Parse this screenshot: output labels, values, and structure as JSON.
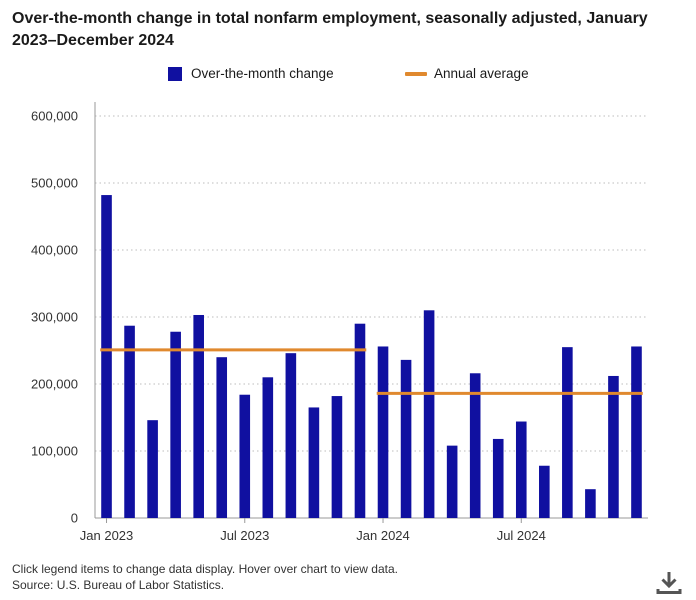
{
  "chart_data": {
    "type": "bar",
    "title": "Over-the-month change in total nonfarm employment, seasonally adjusted, January 2023–December 2024",
    "xlabel": "",
    "ylabel": "",
    "ylim": [
      0,
      600000
    ],
    "yticks": [
      "0",
      "100,000",
      "200,000",
      "300,000",
      "400,000",
      "500,000",
      "600,000"
    ],
    "ytick_values": [
      0,
      100000,
      200000,
      300000,
      400000,
      500000,
      600000
    ],
    "grid": true,
    "legend_position": "top-center",
    "categories": [
      "Jan 2023",
      "Feb 2023",
      "Mar 2023",
      "Apr 2023",
      "May 2023",
      "Jun 2023",
      "Jul 2023",
      "Aug 2023",
      "Sep 2023",
      "Oct 2023",
      "Nov 2023",
      "Dec 2023",
      "Jan 2024",
      "Feb 2024",
      "Mar 2024",
      "Apr 2024",
      "May 2024",
      "Jun 2024",
      "Jul 2024",
      "Aug 2024",
      "Sep 2024",
      "Oct 2024",
      "Nov 2024",
      "Dec 2024"
    ],
    "x_tick_labels": [
      {
        "index": 0,
        "label": "Jan 2023"
      },
      {
        "index": 6,
        "label": "Jul 2023"
      },
      {
        "index": 12,
        "label": "Jan 2024"
      },
      {
        "index": 18,
        "label": "Jul 2024"
      }
    ],
    "series": [
      {
        "name": "Over-the-month change",
        "type": "bar",
        "color": "#1010a0",
        "values": [
          482000,
          287000,
          146000,
          278000,
          303000,
          240000,
          184000,
          210000,
          246000,
          165000,
          182000,
          290000,
          256000,
          236000,
          310000,
          108000,
          216000,
          118000,
          144000,
          78000,
          255000,
          43000,
          212000,
          256000
        ]
      },
      {
        "name": "Annual average",
        "type": "line",
        "color": "#e0892e",
        "segments": [
          {
            "from": "Jan 2023",
            "to": "Dec 2023",
            "value": 251000
          },
          {
            "from": "Jan 2024",
            "to": "Dec 2024",
            "value": 186000
          }
        ]
      }
    ]
  },
  "legend": {
    "bar_label": "Over-the-month change",
    "line_label": "Annual average"
  },
  "footnote": {
    "line1": "Click legend items to change data display. Hover over chart to view data.",
    "line2": "Source: U.S. Bureau of Labor Statistics."
  },
  "icons": {
    "download": "download-icon"
  }
}
